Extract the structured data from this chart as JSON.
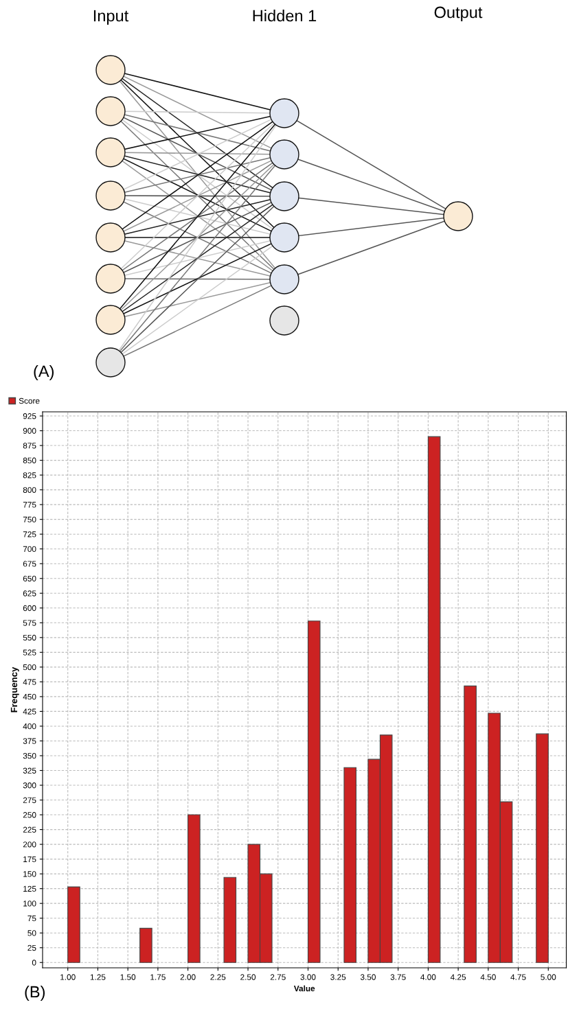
{
  "chart_data": [
    {
      "type": "other",
      "annotations": [
        "Input",
        "Hidden 1",
        "Output",
        "(A)"
      ]
    },
    {
      "type": "histogram",
      "xlabel": "Value",
      "ylabel": "Frequency",
      "annotations": [
        "(B)"
      ],
      "series": [
        {
          "name": "Score",
          "color": "#cc2222",
          "values": [
            128,
            0,
            0,
            0,
            0,
            0,
            58,
            0,
            0,
            0,
            250,
            0,
            0,
            144,
            0,
            200,
            150,
            0,
            0,
            0,
            578,
            0,
            0,
            330,
            0,
            344,
            385,
            0,
            0,
            0,
            890,
            0,
            0,
            468,
            0,
            422,
            272,
            0,
            0,
            387
          ]
        }
      ],
      "bins": [
        1.0,
        1.1,
        1.2,
        1.3,
        1.4,
        1.5,
        1.6,
        1.7,
        1.8,
        1.9,
        2.0,
        2.1,
        2.2,
        2.3,
        2.4,
        2.5,
        2.6,
        2.7,
        2.8,
        2.9,
        3.0,
        3.1,
        3.2,
        3.3,
        3.4,
        3.5,
        3.6,
        3.7,
        3.8,
        3.9,
        4.0,
        4.1,
        4.2,
        4.3,
        4.4,
        4.5,
        4.6,
        4.7,
        4.8,
        4.9,
        5.0
      ],
      "xlim": [
        0.79,
        5.15
      ],
      "ylim": [
        -9,
        932
      ],
      "xticks": [
        {
          "value": 1.0,
          "label": "1.00"
        },
        {
          "value": 1.25,
          "label": "1.25"
        },
        {
          "value": 1.5,
          "label": "1.50"
        },
        {
          "value": 1.75,
          "label": "1.75"
        },
        {
          "value": 2.0,
          "label": "2.00"
        },
        {
          "value": 2.25,
          "label": "2.25"
        },
        {
          "value": 2.5,
          "label": "2.50"
        },
        {
          "value": 2.75,
          "label": "2.75"
        },
        {
          "value": 3.0,
          "label": "3.00"
        },
        {
          "value": 3.25,
          "label": "3.25"
        },
        {
          "value": 3.5,
          "label": "3.50"
        },
        {
          "value": 3.75,
          "label": "3.75"
        },
        {
          "value": 4.0,
          "label": "4.00"
        },
        {
          "value": 4.25,
          "label": "4.25"
        },
        {
          "value": 4.5,
          "label": "4.50"
        },
        {
          "value": 4.75,
          "label": "4.75"
        },
        {
          "value": 5.0,
          "label": "5.00"
        }
      ],
      "yticks": [
        0,
        25,
        50,
        75,
        100,
        125,
        150,
        175,
        200,
        225,
        250,
        275,
        300,
        325,
        350,
        375,
        400,
        425,
        450,
        475,
        500,
        525,
        550,
        575,
        600,
        625,
        650,
        675,
        700,
        725,
        750,
        775,
        800,
        825,
        850,
        875,
        900,
        925
      ],
      "grid": true,
      "legend": "top left"
    }
  ]
}
